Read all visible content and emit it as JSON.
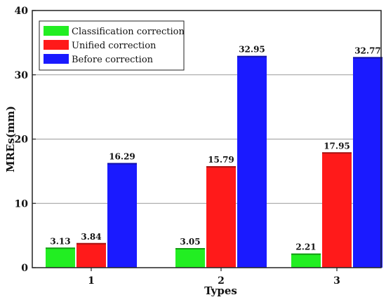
{
  "chart_data": {
    "type": "bar",
    "title": "",
    "xlabel": "Types",
    "ylabel": "MREs(mm)",
    "categories": [
      "1",
      "2",
      "3"
    ],
    "ylim": [
      0,
      40
    ],
    "yticks": [
      0,
      10,
      20,
      30,
      40
    ],
    "grid": true,
    "legend_position": "top-left",
    "series": [
      {
        "name": "Classification correction",
        "color": "#22ee22",
        "values": [
          3.13,
          3.05,
          2.21
        ],
        "labels": [
          "3.13",
          "3.05",
          "2.21"
        ]
      },
      {
        "name": "Unified correction",
        "color": "#ff1a1a",
        "values": [
          3.84,
          15.79,
          17.95
        ],
        "labels": [
          "3.84",
          "15.79",
          "17.95"
        ]
      },
      {
        "name": "Before correction",
        "color": "#1a1aff",
        "values": [
          16.29,
          32.95,
          32.77
        ],
        "labels": [
          "16.29",
          "32.95",
          "32.77"
        ]
      }
    ]
  }
}
